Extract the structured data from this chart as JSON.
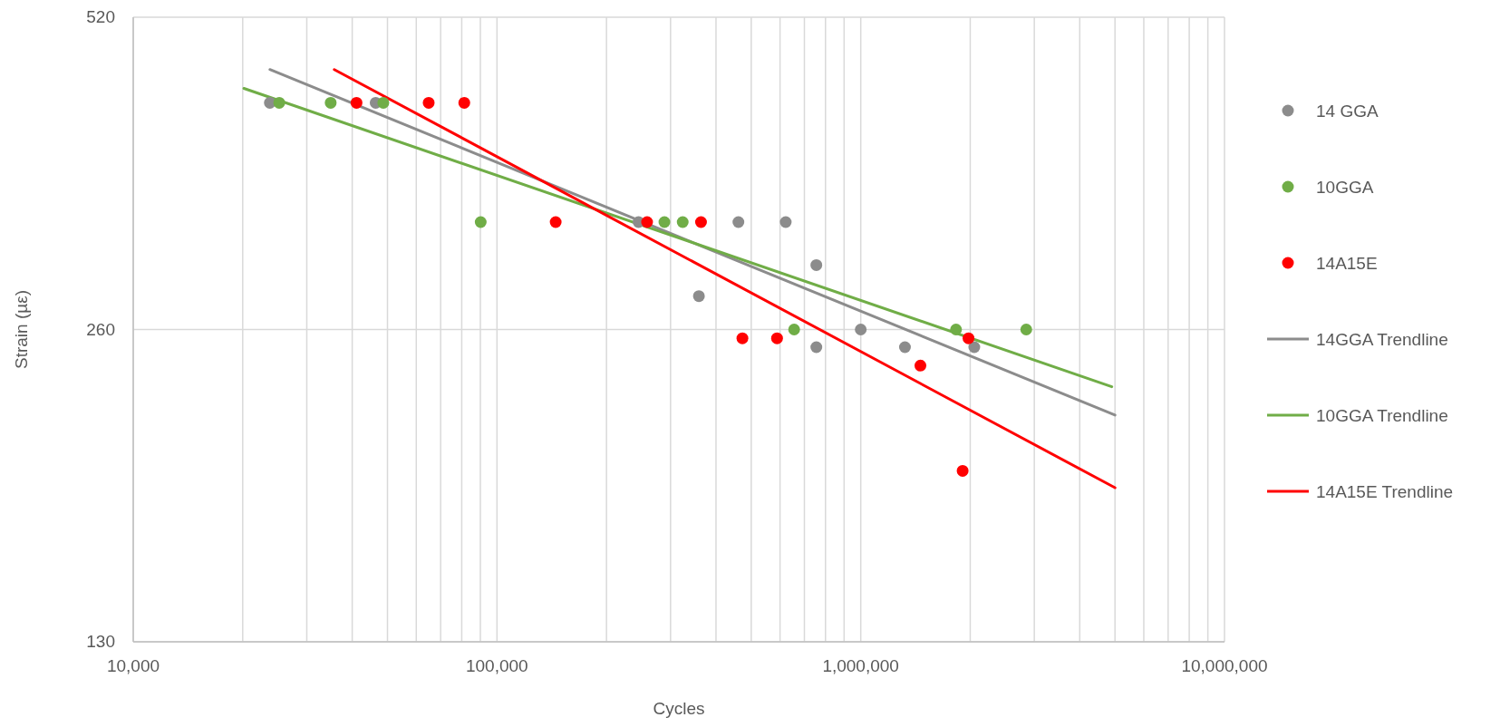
{
  "chart_data": {
    "type": "scatter",
    "xlabel": "Cycles",
    "ylabel": "Strain (µε)",
    "log": "xy",
    "grid": true,
    "legend": "right",
    "marker": "circle",
    "xlim": [
      10000,
      10000000
    ],
    "ylim": [
      130,
      520
    ],
    "xticks": [
      {
        "value": 10000,
        "label": "10,000"
      },
      {
        "value": 20000,
        "label": null
      },
      {
        "value": 30000,
        "label": null
      },
      {
        "value": 40000,
        "label": null
      },
      {
        "value": 50000,
        "label": null
      },
      {
        "value": 60000,
        "label": null
      },
      {
        "value": 70000,
        "label": null
      },
      {
        "value": 80000,
        "label": null
      },
      {
        "value": 90000,
        "label": null
      },
      {
        "value": 100000,
        "label": "100,000"
      },
      {
        "value": 200000,
        "label": null
      },
      {
        "value": 300000,
        "label": null
      },
      {
        "value": 400000,
        "label": null
      },
      {
        "value": 500000,
        "label": null
      },
      {
        "value": 600000,
        "label": null
      },
      {
        "value": 700000,
        "label": null
      },
      {
        "value": 800000,
        "label": null
      },
      {
        "value": 900000,
        "label": null
      },
      {
        "value": 1000000,
        "label": "1,000,000"
      },
      {
        "value": 2000000,
        "label": null
      },
      {
        "value": 3000000,
        "label": null
      },
      {
        "value": 4000000,
        "label": null
      },
      {
        "value": 5000000,
        "label": null
      },
      {
        "value": 6000000,
        "label": null
      },
      {
        "value": 7000000,
        "label": null
      },
      {
        "value": 8000000,
        "label": null
      },
      {
        "value": 9000000,
        "label": null
      },
      {
        "value": 10000000,
        "label": "10,000,000"
      }
    ],
    "yticks": [
      130,
      260,
      520
    ],
    "series": [
      {
        "name": "14 GGA",
        "color": "#8c8c8c",
        "x": [
          23750,
          46400,
          245000,
          359000,
          461000,
          622000,
          755000,
          755000,
          1000000,
          1323000,
          2052000
        ],
        "values": [
          430,
          430,
          330,
          280,
          330,
          330,
          300,
          250,
          260,
          250,
          250
        ]
      },
      {
        "name": "10GGA",
        "color": "#70ad47",
        "x": [
          25200,
          34900,
          48700,
          90200,
          288600,
          324000,
          656000,
          1828000,
          2851000
        ],
        "values": [
          430,
          430,
          430,
          330,
          330,
          330,
          260,
          260,
          260
        ]
      },
      {
        "name": "14A15E",
        "color": "#ff0000",
        "x": [
          41100,
          64900,
          81300,
          145000,
          258600,
          363800,
          472800,
          588700,
          1459000,
          1906000,
          1978000
        ],
        "values": [
          430,
          430,
          430,
          330,
          330,
          330,
          255,
          255,
          240,
          190,
          255
        ]
      },
      {
        "name": "14GGA Trendline",
        "type": "line",
        "marker": "none",
        "color": "#8c8c8c",
        "x": [
          23750,
          5000000
        ],
        "values": [
          463,
          215
        ]
      },
      {
        "name": "10GGA Trendline",
        "type": "line",
        "marker": "none",
        "color": "#70ad47",
        "x": [
          20150,
          4900000
        ],
        "values": [
          444,
          229
        ]
      },
      {
        "name": "14A15E Trendline",
        "type": "line",
        "marker": "none",
        "color": "#ff0000",
        "x": [
          35700,
          5000000
        ],
        "values": [
          463,
          183
        ]
      }
    ]
  }
}
